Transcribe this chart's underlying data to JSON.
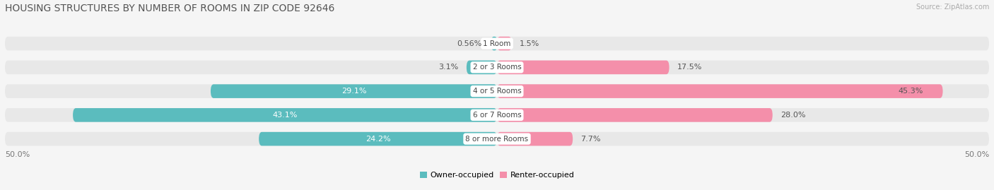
{
  "title": "HOUSING STRUCTURES BY NUMBER OF ROOMS IN ZIP CODE 92646",
  "source": "Source: ZipAtlas.com",
  "categories": [
    "1 Room",
    "2 or 3 Rooms",
    "4 or 5 Rooms",
    "6 or 7 Rooms",
    "8 or more Rooms"
  ],
  "owner_values": [
    0.56,
    3.1,
    29.1,
    43.1,
    24.2
  ],
  "renter_values": [
    1.5,
    17.5,
    45.3,
    28.0,
    7.7
  ],
  "owner_color": "#5bbcbe",
  "renter_color": "#f48faa",
  "background_color": "#f5f5f5",
  "bar_background": "#e8e8e8",
  "axis_limit": 50.0,
  "bar_height": 0.58,
  "title_fontsize": 10,
  "label_fontsize": 8,
  "category_fontsize": 7.5,
  "legend_fontsize": 8,
  "source_fontsize": 7
}
